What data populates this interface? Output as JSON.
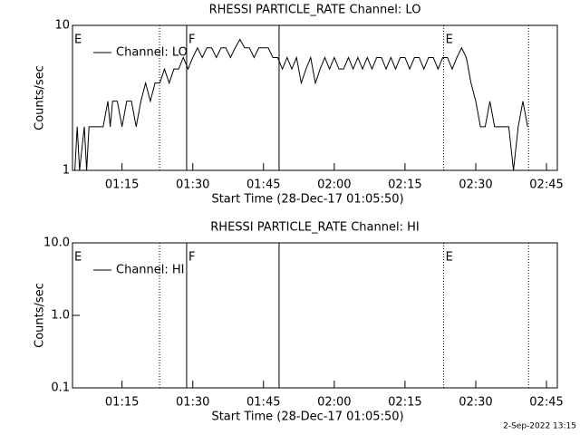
{
  "chart_data": [
    {
      "type": "line",
      "title": "RHESSI PARTICLE_RATE Channel: LO",
      "xlabel": "Start Time (28-Dec-17 01:05:50)",
      "ylabel": "Counts/sec",
      "log_y": true,
      "ylim": [
        1,
        10
      ],
      "yticks": [
        1,
        10
      ],
      "xlim": [
        64.5,
        167.3
      ],
      "xticks": [
        {
          "value": 75,
          "label": "01:15"
        },
        {
          "value": 90,
          "label": "01:30"
        },
        {
          "value": 105,
          "label": "01:45"
        },
        {
          "value": 120,
          "label": "02:00"
        },
        {
          "value": 135,
          "label": "02:15"
        },
        {
          "value": 150,
          "label": "02:30"
        },
        {
          "value": 165,
          "label": "02:45"
        }
      ],
      "events": [
        {
          "x": 82.96,
          "style": "dotted"
        },
        {
          "x": 88.7,
          "style": "solid"
        },
        {
          "x": 108.3,
          "style": "solid"
        },
        {
          "x": 143.2,
          "style": "dotted"
        },
        {
          "x": 161.2,
          "style": "dotted"
        }
      ],
      "event_labels": [
        {
          "x": 64.5,
          "label": "E"
        },
        {
          "x": 88.7,
          "label": "F"
        },
        {
          "x": 143.2,
          "label": "E"
        }
      ],
      "series": [
        {
          "name": "Channel: LO",
          "color": "#000000",
          "x": [
            65,
            65.5,
            66,
            67,
            67.5,
            68,
            69,
            70,
            71,
            72,
            72.5,
            73,
            74,
            75,
            76,
            77,
            78,
            79,
            80,
            81,
            82,
            83,
            84,
            85,
            86,
            87,
            88,
            89,
            90,
            91,
            92,
            93,
            94,
            95,
            96,
            97,
            98,
            99,
            100,
            101,
            102,
            103,
            104,
            105,
            106,
            107,
            108,
            109,
            110,
            111,
            112,
            113,
            114,
            115,
            116,
            117,
            118,
            119,
            120,
            121,
            122,
            123,
            124,
            125,
            126,
            127,
            128,
            129,
            130,
            131,
            132,
            133,
            134,
            135,
            136,
            137,
            138,
            139,
            140,
            141,
            142,
            143,
            144,
            145,
            146,
            147,
            148,
            149,
            150,
            151,
            152,
            153,
            154,
            155,
            156,
            157,
            158,
            159,
            160,
            161
          ],
          "values": [
            1,
            2,
            1,
            2,
            1,
            2,
            2,
            2,
            2,
            3,
            2,
            3,
            3,
            2,
            3,
            3,
            2,
            3,
            4,
            3,
            4,
            4,
            5,
            4,
            5,
            5,
            6,
            5,
            6,
            7,
            6,
            7,
            7,
            6,
            7,
            7,
            6,
            7,
            8,
            7,
            7,
            6,
            7,
            7,
            7,
            6,
            6,
            5,
            6,
            5,
            6,
            4,
            5,
            6,
            4,
            5,
            6,
            5,
            6,
            5,
            5,
            6,
            5,
            6,
            5,
            6,
            5,
            6,
            6,
            5,
            6,
            5,
            6,
            6,
            5,
            6,
            6,
            5,
            6,
            6,
            5,
            6,
            6,
            5,
            6,
            7,
            6,
            4,
            3,
            2,
            2,
            3,
            2,
            2,
            2,
            2,
            1,
            2,
            3,
            2
          ]
        }
      ]
    },
    {
      "type": "line",
      "title": "RHESSI PARTICLE_RATE Channel: HI",
      "xlabel": "Start Time (28-Dec-17 01:05:50)",
      "ylabel": "Counts/sec",
      "log_y": true,
      "ylim": [
        0.1,
        10
      ],
      "yticks": [
        0.1,
        {
          "value": 1,
          "label": "1.0"
        },
        {
          "value": 10,
          "label": "10.0"
        }
      ],
      "xlim": [
        64.5,
        167.3
      ],
      "xticks": [
        {
          "value": 75,
          "label": "01:15"
        },
        {
          "value": 90,
          "label": "01:30"
        },
        {
          "value": 105,
          "label": "01:45"
        },
        {
          "value": 120,
          "label": "02:00"
        },
        {
          "value": 135,
          "label": "02:15"
        },
        {
          "value": 150,
          "label": "02:30"
        },
        {
          "value": 165,
          "label": "02:45"
        }
      ],
      "events": [
        {
          "x": 82.96,
          "style": "dotted"
        },
        {
          "x": 88.7,
          "style": "solid"
        },
        {
          "x": 108.3,
          "style": "solid"
        },
        {
          "x": 143.2,
          "style": "dotted"
        },
        {
          "x": 161.2,
          "style": "dotted"
        }
      ],
      "event_labels": [
        {
          "x": 64.5,
          "label": "E"
        },
        {
          "x": 88.7,
          "label": "F"
        },
        {
          "x": 143.2,
          "label": "E"
        }
      ],
      "series": [
        {
          "name": "Channel: HI",
          "color": "#000000",
          "x": [],
          "values": []
        }
      ]
    }
  ],
  "footer": "2-Sep-2022 13:15"
}
